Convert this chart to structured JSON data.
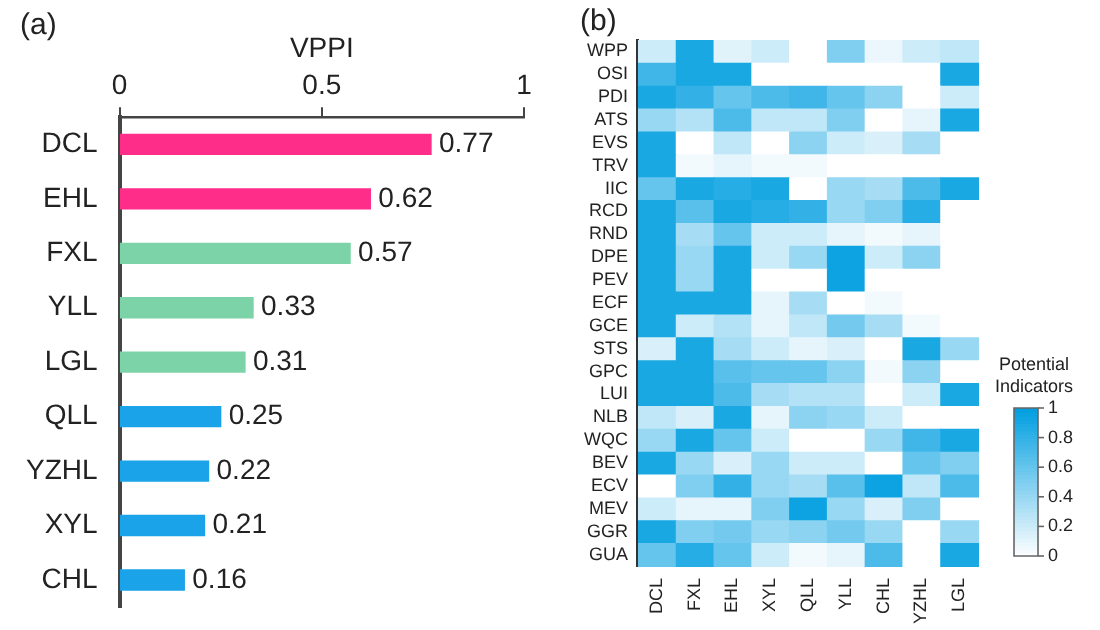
{
  "chart_data": [
    {
      "type": "bar",
      "orientation": "horizontal",
      "title": "(a)",
      "xlabel": "VPPI",
      "categories": [
        "DCL",
        "EHL",
        "FXL",
        "YLL",
        "LGL",
        "QLL",
        "YZHL",
        "XYL",
        "CHL"
      ],
      "values": [
        0.77,
        0.62,
        0.57,
        0.33,
        0.31,
        0.25,
        0.22,
        0.21,
        0.16
      ],
      "colors": [
        "#ff2d8a",
        "#ff2d8a",
        "#7dd3a8",
        "#7dd3a8",
        "#7dd3a8",
        "#1aa3e8",
        "#1aa3e8",
        "#1aa3e8",
        "#1aa3e8"
      ],
      "xlim": [
        0,
        1
      ],
      "xticks": [
        0,
        0.5,
        1
      ],
      "data_labels": true,
      "grid": false,
      "legend": false
    },
    {
      "type": "heatmap",
      "title": "(b)",
      "clabel": "Potential Indicators",
      "categories": [
        "DCL",
        "FXL",
        "EHL",
        "XYL",
        "QLL",
        "YLL",
        "CHL",
        "YZHL",
        "LGL"
      ],
      "y_categories": [
        "WPP",
        "OSI",
        "PDI",
        "ATS",
        "EVS",
        "TRV",
        "IIC",
        "RCD",
        "RND",
        "DPE",
        "PEV",
        "ECF",
        "GCE",
        "STS",
        "GPC",
        "LUI",
        "NLB",
        "WQC",
        "BEV",
        "ECV",
        "MEV",
        "GGR",
        "GUA"
      ],
      "cells": [
        [
          0.2,
          0.9,
          0.12,
          0.2,
          0,
          0.5,
          0.08,
          0.2,
          0.25
        ],
        [
          0.75,
          0.9,
          0.9,
          0,
          0,
          0,
          0,
          0,
          0.9
        ],
        [
          0.9,
          0.8,
          0.6,
          0.7,
          0.75,
          0.6,
          0.45,
          0,
          0.2
        ],
        [
          0.4,
          0.3,
          0.7,
          0.25,
          0.25,
          0.5,
          0,
          0.1,
          0.9
        ],
        [
          0.9,
          0,
          0.25,
          0,
          0.45,
          0.2,
          0.15,
          0.35,
          0
        ],
        [
          0.9,
          0.05,
          0.1,
          0.05,
          0.05,
          0,
          0,
          0,
          0
        ],
        [
          0.6,
          0.9,
          0.85,
          0.9,
          0,
          0.4,
          0.35,
          0.7,
          0.9
        ],
        [
          0.9,
          0.65,
          0.9,
          0.85,
          0.8,
          0.4,
          0.5,
          0.85,
          0
        ],
        [
          0.9,
          0.35,
          0.6,
          0.2,
          0.2,
          0.1,
          0.05,
          0.1,
          0
        ],
        [
          0.9,
          0.4,
          0.9,
          0.2,
          0.4,
          0.95,
          0.2,
          0.45,
          0
        ],
        [
          0.9,
          0.4,
          0.9,
          0,
          0,
          0.95,
          0,
          0,
          0
        ],
        [
          0.9,
          0.9,
          0.9,
          0.1,
          0.35,
          0,
          0.05,
          0,
          0
        ],
        [
          0.9,
          0.2,
          0.3,
          0.1,
          0.25,
          0.55,
          0.35,
          0.05,
          0
        ],
        [
          0.15,
          0.9,
          0.35,
          0.2,
          0.1,
          0.15,
          0,
          0.9,
          0.4
        ],
        [
          0.9,
          0.9,
          0.65,
          0.6,
          0.6,
          0.45,
          0.05,
          0.45,
          0
        ],
        [
          0.9,
          0.9,
          0.7,
          0.35,
          0.3,
          0.3,
          0,
          0.2,
          0.9
        ],
        [
          0.25,
          0.15,
          0.9,
          0.1,
          0.45,
          0.4,
          0.2,
          0,
          0
        ],
        [
          0.4,
          0.9,
          0.6,
          0.2,
          0,
          0,
          0.4,
          0.75,
          0.9
        ],
        [
          0.9,
          0.4,
          0.15,
          0.4,
          0.2,
          0.2,
          0,
          0.6,
          0.5
        ],
        [
          0,
          0.5,
          0.8,
          0.4,
          0.35,
          0.65,
          0.95,
          0.25,
          0.7
        ],
        [
          0.2,
          0.1,
          0.1,
          0.5,
          0.95,
          0.4,
          0.15,
          0.5,
          0
        ],
        [
          0.9,
          0.5,
          0.55,
          0.4,
          0.45,
          0.55,
          0.4,
          0,
          0.4
        ],
        [
          0.6,
          0.85,
          0.6,
          0.2,
          0.05,
          0.1,
          0.7,
          0,
          0.9
        ]
      ],
      "clim": [
        0,
        1
      ],
      "cticks": [
        0,
        0.2,
        0.4,
        0.6,
        0.8,
        1
      ]
    }
  ]
}
